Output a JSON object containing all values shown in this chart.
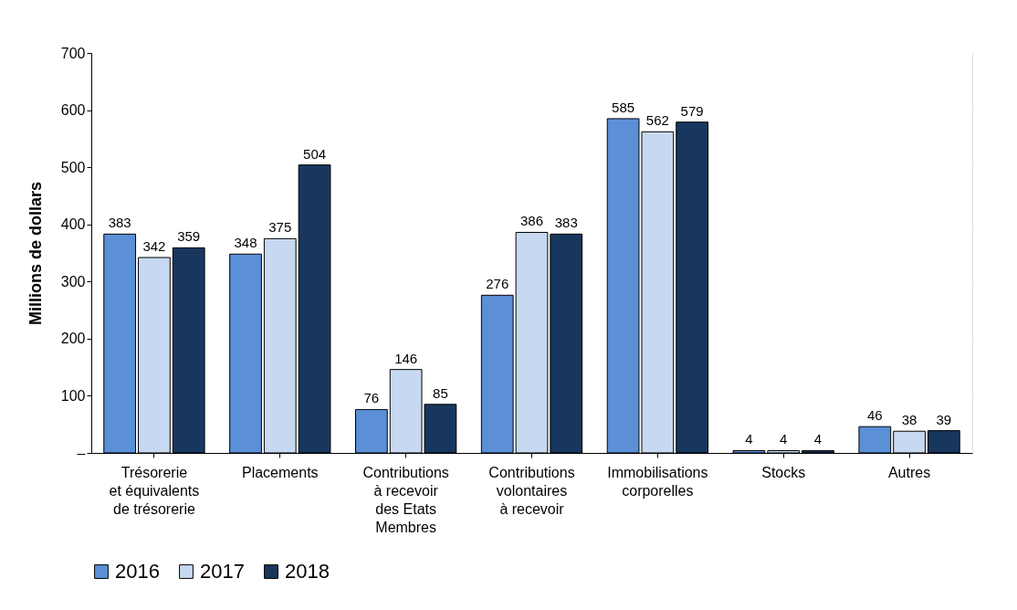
{
  "chart_data": {
    "type": "bar",
    "ylabel": "Millions de dollars",
    "categories": [
      "Trésorerie\net équivalents\nde trésorerie",
      "Placements",
      "Contributions\nà recevoir\ndes Etats\nMembres",
      "Contributions\nvolontaires\nà recevoir",
      "Immobilisations\ncorporelles",
      "Stocks",
      "Autres"
    ],
    "series": [
      {
        "name": "2016",
        "color": "#5b8fd6",
        "values": [
          383,
          348,
          76,
          276,
          585,
          4,
          46
        ]
      },
      {
        "name": "2017",
        "color": "#c6d9f1",
        "values": [
          342,
          375,
          146,
          386,
          562,
          4,
          38
        ]
      },
      {
        "name": "2018",
        "color": "#17375e",
        "values": [
          359,
          504,
          85,
          383,
          579,
          4,
          39
        ]
      }
    ],
    "ylim": [
      0,
      700
    ],
    "yticks": [
      {
        "value": 0,
        "label": "–"
      },
      100,
      200,
      300,
      400,
      500,
      600,
      700
    ],
    "grid": "y",
    "legend": "bottom",
    "data_labels": true
  }
}
